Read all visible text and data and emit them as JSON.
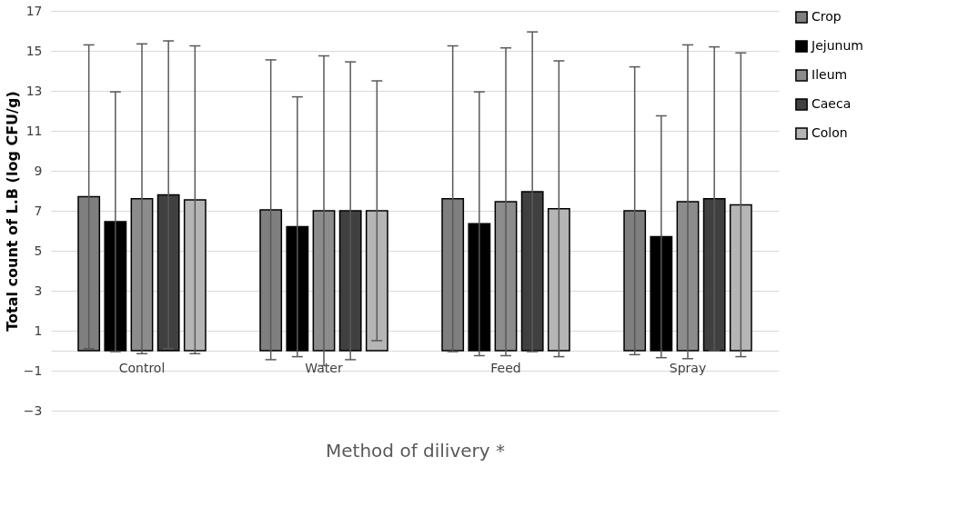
{
  "chart_data": {
    "type": "bar",
    "xlabel": "Method of dilivery *",
    "ylabel": "Total count of L.B (log CFU/g)",
    "categories": [
      "Control",
      "Water",
      "Feed",
      "Spray"
    ],
    "series": [
      {
        "name": "Crop",
        "color": "#7f7f7f",
        "values": [
          7.7,
          7.05,
          7.6,
          7.0
        ],
        "errors": [
          7.6,
          7.5,
          7.65,
          7.2
        ]
      },
      {
        "name": "Jejunum",
        "color": "#000000",
        "values": [
          6.45,
          6.2,
          6.35,
          5.7
        ],
        "errors": [
          6.5,
          6.5,
          6.6,
          6.05
        ]
      },
      {
        "name": "Ileum",
        "color": "#8c8c8c",
        "values": [
          7.6,
          7.0,
          7.45,
          7.45
        ],
        "errors": [
          7.75,
          7.75,
          7.7,
          7.85
        ]
      },
      {
        "name": "Caeca",
        "color": "#404040",
        "values": [
          7.8,
          7.0,
          7.95,
          7.6
        ],
        "errors": [
          7.7,
          7.45,
          8.0,
          7.6
        ]
      },
      {
        "name": "Colon",
        "color": "#b5b5b5",
        "values": [
          7.55,
          7.0,
          7.1,
          7.3
        ],
        "errors": [
          7.7,
          6.5,
          7.4,
          7.6
        ]
      }
    ],
    "ylim": [
      -3,
      17
    ],
    "yticks": [
      -3,
      -1,
      1,
      3,
      5,
      7,
      9,
      11,
      13,
      15,
      17
    ],
    "grid": "y",
    "legend": "right"
  }
}
